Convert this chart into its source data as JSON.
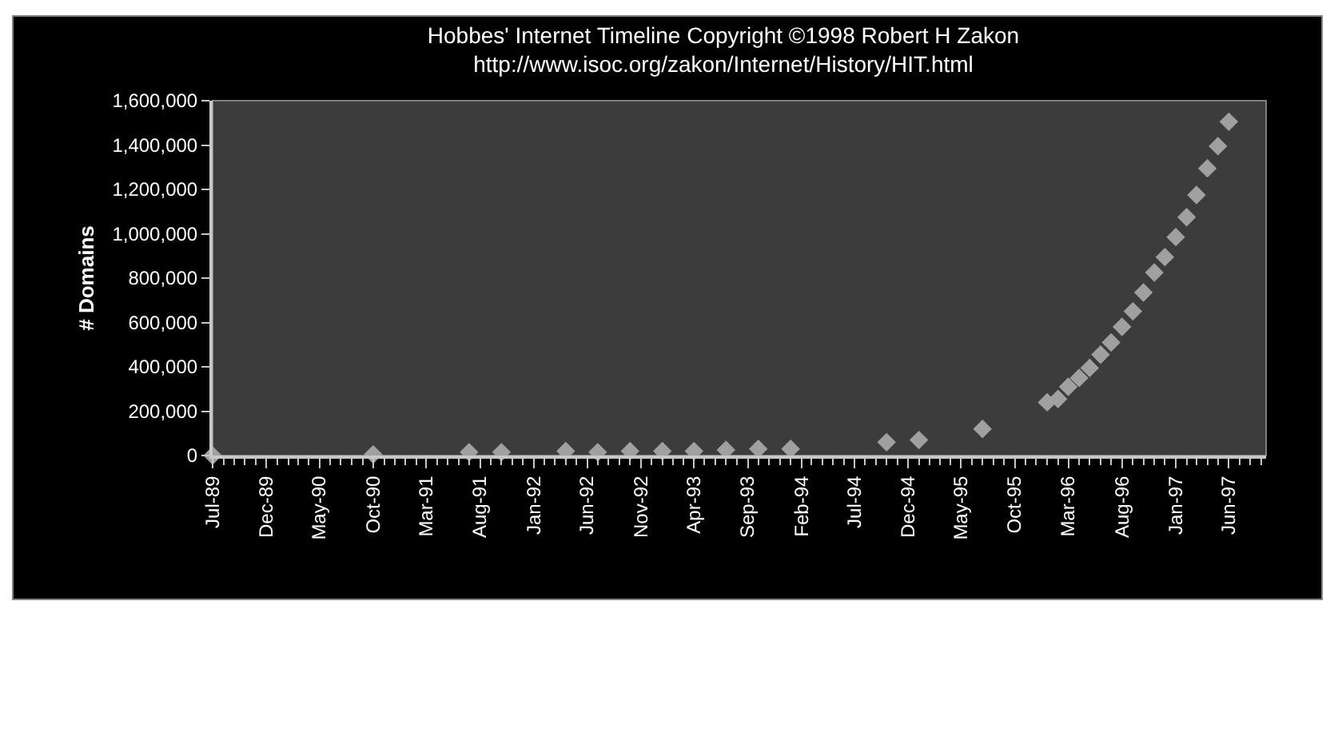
{
  "chart_data": {
    "type": "scatter",
    "title": "Hobbes' Internet Timeline Copyright ©1998 Robert H Zakon",
    "subtitle": "http://www.isoc.org/zakon/Internet/History/HIT.html",
    "ylabel": "# Domains",
    "x": [
      "1989-07",
      "1990-10",
      "1991-07",
      "1991-10",
      "1992-04",
      "1992-07",
      "1992-10",
      "1993-01",
      "1993-04",
      "1993-07",
      "1993-10",
      "1994-01",
      "1994-10",
      "1995-01",
      "1995-07",
      "1996-01",
      "1996-02",
      "1996-03",
      "1996-04",
      "1996-05",
      "1996-06",
      "1996-07",
      "1996-08",
      "1996-09",
      "1996-10",
      "1996-11",
      "1996-12",
      "1997-01",
      "1997-02",
      "1997-03",
      "1997-04",
      "1997-05",
      "1997-06"
    ],
    "series": [
      {
        "color": "#a0a0a0",
        "values": [
          0,
          5000,
          15000,
          15000,
          20000,
          15000,
          20000,
          20000,
          20000,
          25000,
          30000,
          30000,
          60000,
          70000,
          120000,
          240000,
          255000,
          310000,
          350000,
          395000,
          455000,
          510000,
          580000,
          650000,
          735000,
          825000,
          895000,
          985000,
          1075000,
          1175000,
          1295000,
          1395000,
          1505000
        ]
      }
    ],
    "xlim": [
      "1989-07-01",
      "1997-09-15"
    ],
    "xticks": [
      {
        "value": "1989-07",
        "label": "Jul-89"
      },
      {
        "value": "1989-12",
        "label": "Dec-89"
      },
      {
        "value": "1990-05",
        "label": "May-90"
      },
      {
        "value": "1990-10",
        "label": "Oct-90"
      },
      {
        "value": "1991-03",
        "label": "Mar-91"
      },
      {
        "value": "1991-08",
        "label": "Aug-91"
      },
      {
        "value": "1992-01",
        "label": "Jan-92"
      },
      {
        "value": "1992-06",
        "label": "Jun-92"
      },
      {
        "value": "1992-11",
        "label": "Nov-92"
      },
      {
        "value": "1993-04",
        "label": "Apr-93"
      },
      {
        "value": "1993-09",
        "label": "Sep-93"
      },
      {
        "value": "1994-02",
        "label": "Feb-94"
      },
      {
        "value": "1994-07",
        "label": "Jul-94"
      },
      {
        "value": "1994-12",
        "label": "Dec-94"
      },
      {
        "value": "1995-05",
        "label": "May-95"
      },
      {
        "value": "1995-10",
        "label": "Oct-95"
      },
      {
        "value": "1996-03",
        "label": "Mar-96"
      },
      {
        "value": "1996-08",
        "label": "Aug-96"
      },
      {
        "value": "1997-01",
        "label": "Jan-97"
      },
      {
        "value": "1997-06",
        "label": "Jun-97"
      }
    ],
    "ylim": [
      0,
      1600000
    ],
    "yticks": [
      {
        "value": 0,
        "label": "0"
      },
      {
        "value": 200000,
        "label": "200,000"
      },
      {
        "value": 400000,
        "label": "400,000"
      },
      {
        "value": 600000,
        "label": "600,000"
      },
      {
        "value": 800000,
        "label": "800,000"
      },
      {
        "value": 1000000,
        "label": "1,000,000"
      },
      {
        "value": 1200000,
        "label": "1,200,000"
      },
      {
        "value": 1400000,
        "label": "1,400,000"
      },
      {
        "value": 1600000,
        "label": "1,600,000"
      }
    ],
    "marker": "diamond",
    "grid": false
  }
}
